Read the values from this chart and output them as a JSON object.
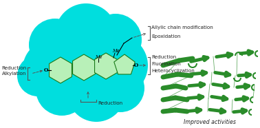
{
  "bg_color": "#ffffff",
  "cloud_color": "#00dede",
  "cloud_alpha": 1.0,
  "ring_fill": "#b8f0b8",
  "ring_edge": "#1a7a1a",
  "ring_lw": 0.8,
  "text_color": "#222222",
  "protein_green": "#2a8c2a",
  "protein_light": "#4ab84a",
  "annotations_right_top": [
    "Allylic chain modification",
    "Epoxidation"
  ],
  "annotations_right_mid": [
    "Reduction",
    "Fluorination",
    "Heterocyclization"
  ],
  "label_left_1": "Reduction",
  "label_left_2": "Alkylation",
  "label_bottom": "Reduction",
  "label_me_top": "Me",
  "label_me_mid": "Me",
  "label_o_left": "O",
  "label_o_right": "O",
  "improved_activities": "Improved activities",
  "fs": 5.8,
  "fs_small": 5.2
}
